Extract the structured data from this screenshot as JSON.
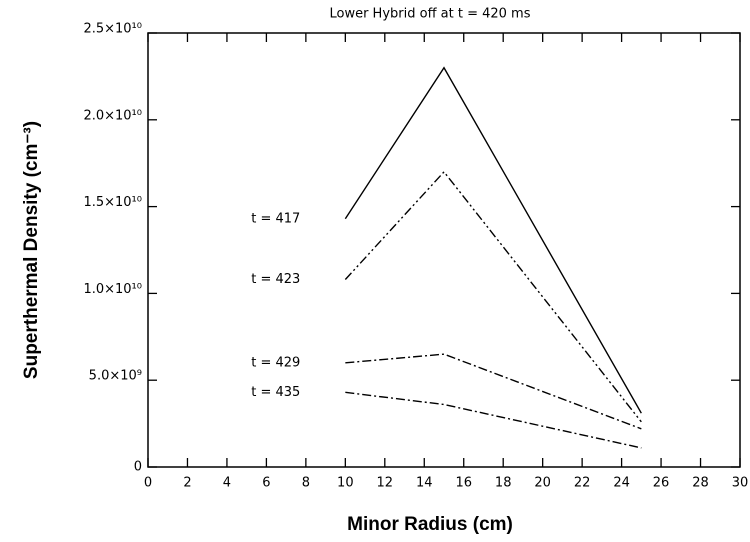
{
  "chart_data": {
    "type": "line",
    "title": "Lower Hybrid off at t = 420 ms",
    "x_label": "Minor Radius   (cm)",
    "y_label": "Superthermal Density  (cm⁻³)",
    "x": [
      10,
      15,
      25
    ],
    "series": [
      {
        "name": "t = 417",
        "color": "#000000",
        "linestyle": "solid",
        "values": [
          14300000000,
          23000000000,
          3100000000
        ]
      },
      {
        "name": "t = 423",
        "color": "#000000",
        "linestyle": "dashdotdot",
        "values": [
          10800000000,
          17000000000,
          2600000000
        ]
      },
      {
        "name": "t = 429",
        "color": "#000000",
        "linestyle": "dashdot",
        "values": [
          6000000000,
          6500000000,
          2200000000
        ]
      },
      {
        "name": "t = 435",
        "color": "#000000",
        "linestyle": "dashdot",
        "values": [
          4300000000,
          3600000000,
          1100000000
        ]
      }
    ],
    "xlim": [
      0,
      30
    ],
    "xticks": [
      0,
      2,
      4,
      6,
      8,
      10,
      12,
      14,
      16,
      18,
      20,
      22,
      24,
      26,
      28,
      30
    ],
    "ylim": [
      0,
      25000000000
    ],
    "yticks": [
      0,
      {
        "value": 5000000000,
        "label": "5.0×10⁹"
      },
      {
        "value": 10000000000,
        "label": "1.0×10¹⁰"
      },
      {
        "value": 15000000000,
        "label": "1.5×10¹⁰"
      },
      {
        "value": 20000000000,
        "label": "2.0×10¹⁰"
      },
      {
        "value": 25000000000,
        "label": "2.5×10¹⁰"
      }
    ]
  }
}
